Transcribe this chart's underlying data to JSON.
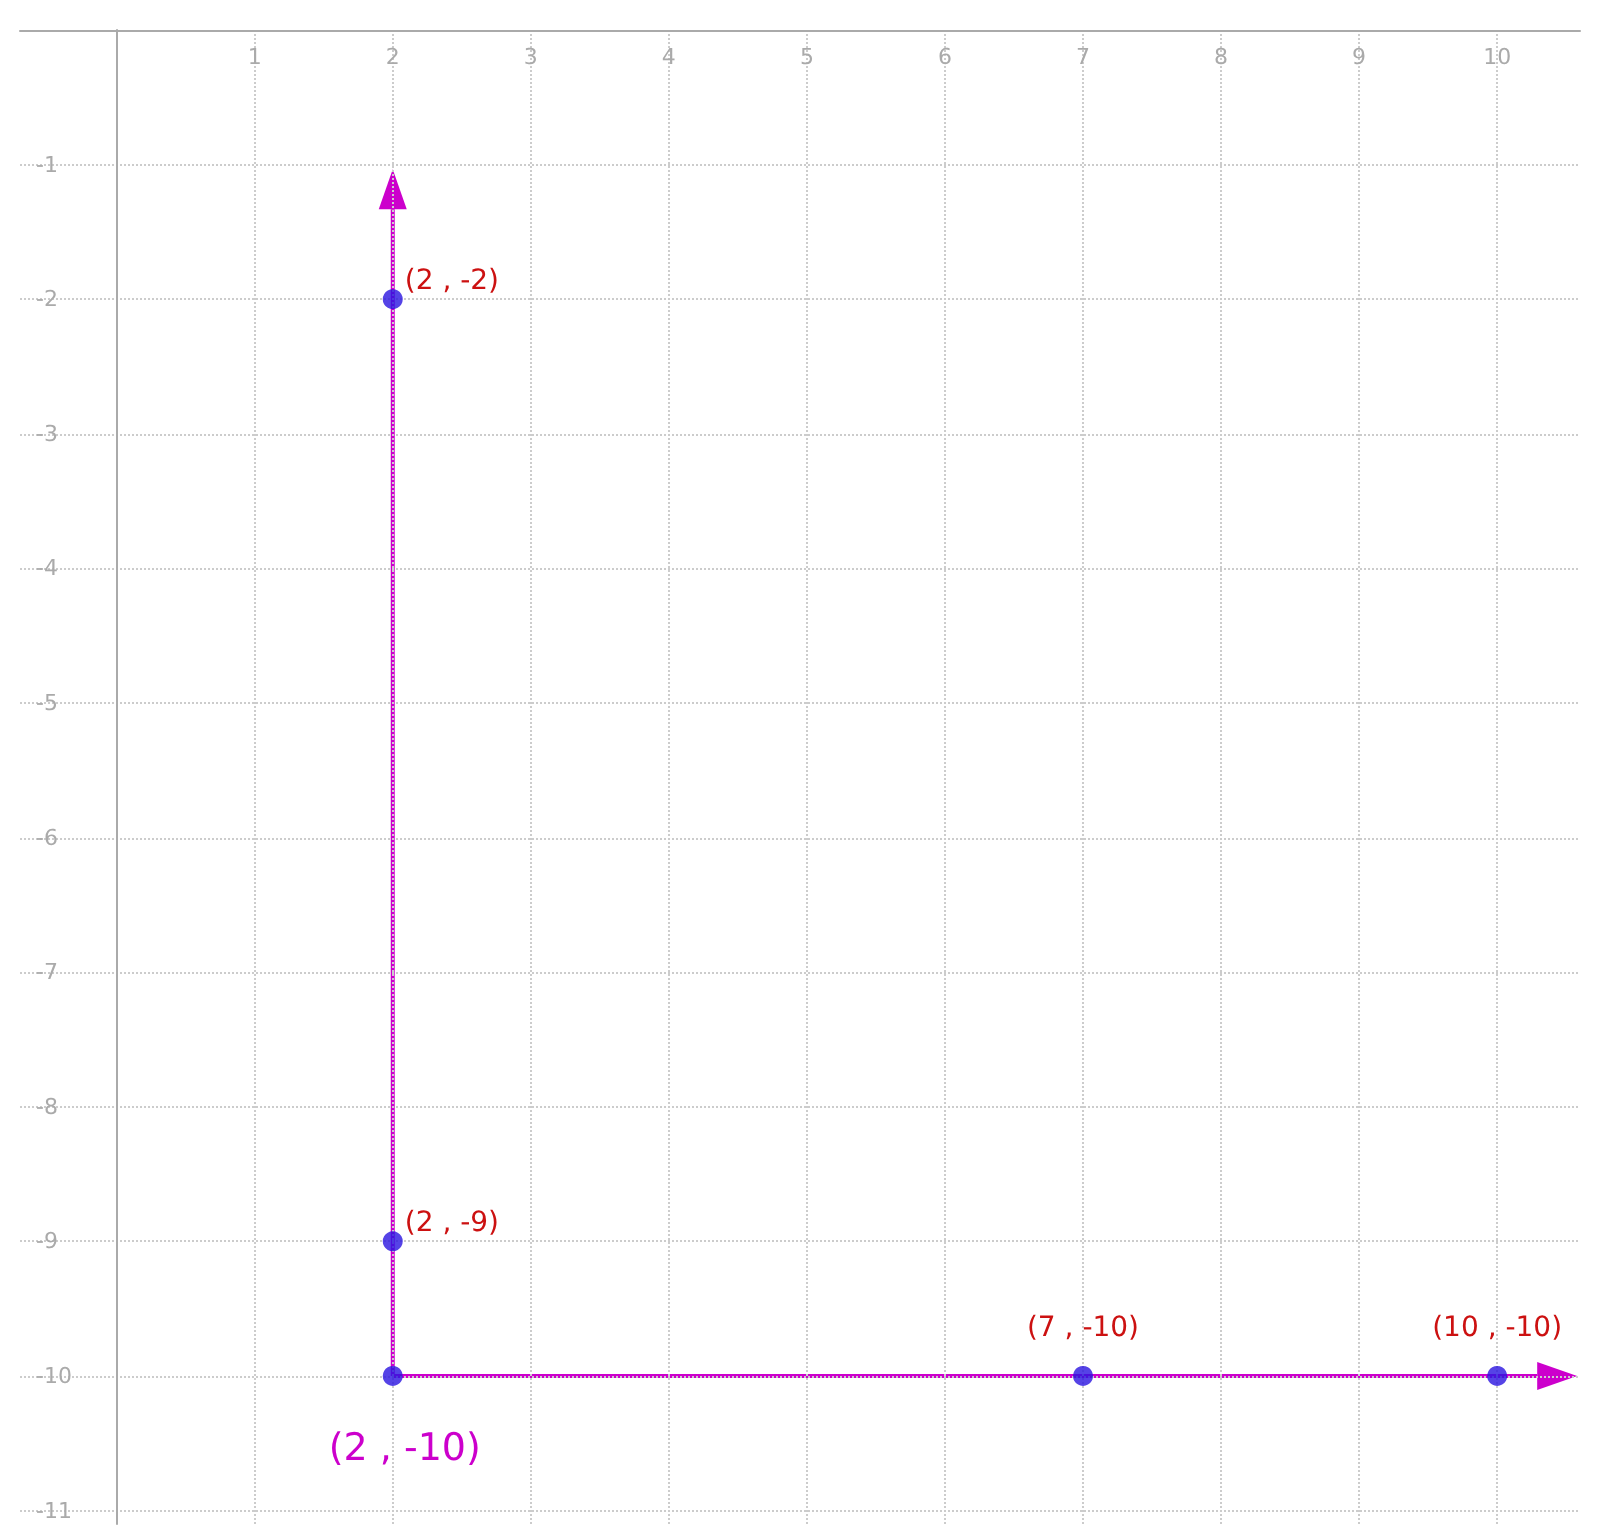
{
  "chart_data": {
    "type": "scatter",
    "xlim": [
      -0.7,
      10.6
    ],
    "ylim": [
      -11.1,
      0
    ],
    "xticks": [
      1,
      2,
      3,
      4,
      5,
      6,
      7,
      8,
      9,
      10
    ],
    "yticks": [
      -1,
      -2,
      -3,
      -4,
      -5,
      -6,
      -7,
      -8,
      -9,
      -10,
      -11
    ],
    "grid": true,
    "marker": "circle",
    "series": [
      {
        "color": "#2a14e0",
        "x": [
          2,
          2,
          2,
          7,
          10
        ],
        "values": [
          -2,
          -9,
          -10,
          -10,
          -10
        ]
      }
    ],
    "annotations": [
      {
        "text": "(2 , -2)",
        "x": 2,
        "y": -2
      },
      {
        "text": "(2 , -9)",
        "x": 2,
        "y": -9
      },
      {
        "text": "(7 , -10)",
        "x": 7,
        "y": -10
      },
      {
        "text": "(10 , -10)",
        "x": 10,
        "y": -10
      },
      {
        "text": "(2 , -10)",
        "x": 2,
        "y": -10
      }
    ]
  }
}
